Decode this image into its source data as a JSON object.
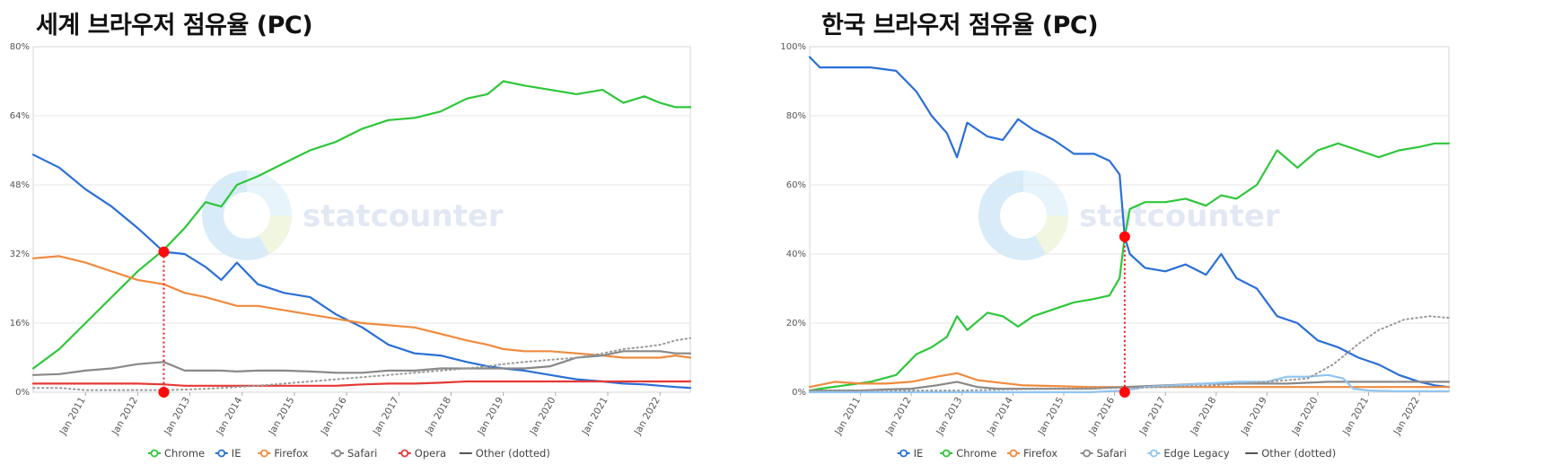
{
  "chart_data": [
    {
      "type": "line",
      "title": "세계 브라우저 점유율 (PC)",
      "watermark": "statcounter",
      "ylim": [
        0,
        80
      ],
      "yticks": [
        "0%",
        "16%",
        "32%",
        "48%",
        "64%",
        "80%"
      ],
      "xlim": [
        2010.0,
        2022.58
      ],
      "xticks": [
        "Jan 2011",
        "Jan 2012",
        "Jan 2013",
        "Jan 2014",
        "Jan 2015",
        "Jan 2016",
        "Jan 2017",
        "Jan 2018",
        "Jan 2019",
        "Jan 2020",
        "Jan 2021",
        "Jan 2022"
      ],
      "legend_position": "bottom",
      "crossover": {
        "x": 2012.5,
        "y": 32.5
      },
      "series": [
        {
          "name": "Chrome",
          "color": "#2ec63a",
          "x": [
            2010.0,
            2010.5,
            2011.0,
            2011.5,
            2012.0,
            2012.5,
            2012.9,
            2013.3,
            2013.6,
            2013.9,
            2014.3,
            2014.8,
            2015.3,
            2015.8,
            2016.3,
            2016.8,
            2017.3,
            2017.8,
            2018.3,
            2018.7,
            2019.0,
            2019.4,
            2019.9,
            2020.4,
            2020.9,
            2021.3,
            2021.7,
            2022.0,
            2022.3,
            2022.58
          ],
          "values": [
            5.5,
            10,
            16,
            22,
            28,
            33,
            38,
            44,
            43,
            48,
            50,
            53,
            56,
            58,
            61,
            63,
            63.5,
            65,
            68,
            69,
            72,
            71,
            70,
            69,
            70,
            67,
            68.5,
            67,
            66,
            66
          ]
        },
        {
          "name": "IE",
          "color": "#2a6fd6",
          "x": [
            2010.0,
            2010.5,
            2011.0,
            2011.5,
            2012.0,
            2012.5,
            2012.9,
            2013.3,
            2013.6,
            2013.9,
            2014.3,
            2014.8,
            2015.3,
            2015.8,
            2016.3,
            2016.8,
            2017.3,
            2017.8,
            2018.3,
            2018.7,
            2019.0,
            2019.4,
            2019.9,
            2020.4,
            2020.9,
            2021.3,
            2021.7,
            2022.0,
            2022.3,
            2022.58
          ],
          "values": [
            55,
            52,
            47,
            43,
            38,
            32.5,
            32,
            29,
            26,
            30,
            25,
            23,
            22,
            18,
            15,
            11,
            9,
            8.5,
            7,
            6,
            5.5,
            5,
            4,
            3,
            2.5,
            2,
            1.8,
            1.5,
            1.2,
            1.0
          ]
        },
        {
          "name": "Firefox",
          "color": "#f08a3e",
          "x": [
            2010.0,
            2010.5,
            2011.0,
            2011.5,
            2012.0,
            2012.5,
            2012.9,
            2013.3,
            2013.6,
            2013.9,
            2014.3,
            2014.8,
            2015.3,
            2015.8,
            2016.3,
            2016.8,
            2017.3,
            2017.8,
            2018.3,
            2018.7,
            2019.0,
            2019.4,
            2019.9,
            2020.4,
            2020.9,
            2021.3,
            2021.7,
            2022.0,
            2022.3,
            2022.58
          ],
          "values": [
            31,
            31.5,
            30,
            28,
            26,
            25,
            23,
            22,
            21,
            20,
            20,
            19,
            18,
            17,
            16,
            15.5,
            15,
            13.5,
            12,
            11,
            10,
            9.5,
            9.5,
            9,
            8.5,
            8,
            8,
            8,
            8.5,
            8
          ]
        },
        {
          "name": "Safari",
          "color": "#888888",
          "x": [
            2010.0,
            2010.5,
            2011.0,
            2011.5,
            2012.0,
            2012.5,
            2012.9,
            2013.3,
            2013.6,
            2013.9,
            2014.3,
            2014.8,
            2015.3,
            2015.8,
            2016.3,
            2016.8,
            2017.3,
            2017.8,
            2018.3,
            2018.7,
            2019.0,
            2019.4,
            2019.9,
            2020.4,
            2020.9,
            2021.3,
            2021.7,
            2022.0,
            2022.3,
            2022.58
          ],
          "values": [
            4,
            4.2,
            5,
            5.5,
            6.5,
            7,
            5,
            5,
            5,
            4.8,
            5,
            5,
            4.8,
            4.5,
            4.5,
            5,
            5,
            5.5,
            5.5,
            5.5,
            5.5,
            5.5,
            6,
            8,
            8.5,
            9.5,
            9.5,
            9.5,
            9,
            9
          ]
        },
        {
          "name": "Opera",
          "color": "#e53935",
          "x": [
            2010.0,
            2010.5,
            2011.0,
            2011.5,
            2012.0,
            2012.5,
            2012.9,
            2013.3,
            2013.6,
            2013.9,
            2014.3,
            2014.8,
            2015.3,
            2015.8,
            2016.3,
            2016.8,
            2017.3,
            2017.8,
            2018.3,
            2018.7,
            2019.0,
            2019.4,
            2019.9,
            2020.4,
            2020.9,
            2021.3,
            2021.7,
            2022.0,
            2022.3,
            2022.58
          ],
          "values": [
            2,
            2,
            2,
            2,
            2,
            1.8,
            1.5,
            1.5,
            1.5,
            1.5,
            1.5,
            1.5,
            1.5,
            1.5,
            1.8,
            2,
            2,
            2.2,
            2.5,
            2.5,
            2.5,
            2.5,
            2.5,
            2.5,
            2.5,
            2.5,
            2.5,
            2.5,
            2.5,
            2.5
          ]
        },
        {
          "name": "Other (dotted)",
          "color": "#9a9a9a",
          "dotted": true,
          "x": [
            2010.0,
            2010.5,
            2011.0,
            2011.5,
            2012.0,
            2012.5,
            2012.9,
            2013.3,
            2013.6,
            2013.9,
            2014.3,
            2014.8,
            2015.3,
            2015.8,
            2016.3,
            2016.8,
            2017.3,
            2017.8,
            2018.3,
            2018.7,
            2019.0,
            2019.4,
            2019.9,
            2020.4,
            2020.9,
            2021.3,
            2021.7,
            2022.0,
            2022.3,
            2022.58
          ],
          "values": [
            1,
            1,
            0.5,
            0.5,
            0.5,
            0.5,
            0.6,
            0.8,
            1,
            1.2,
            1.5,
            2,
            2.5,
            3,
            3.5,
            4,
            4.5,
            5,
            5.5,
            6,
            6.5,
            7,
            7.5,
            8,
            9,
            10,
            10.5,
            11,
            12,
            12.5
          ]
        }
      ]
    },
    {
      "type": "line",
      "title": "한국 브라우저 점유율 (PC)",
      "watermark": "statcounter",
      "ylim": [
        0,
        100
      ],
      "yticks": [
        "0%",
        "20%",
        "40%",
        "60%",
        "80%",
        "100%"
      ],
      "xlim": [
        2010.0,
        2022.58
      ],
      "xticks": [
        "Jan 2011",
        "Jan 2012",
        "Jan 2013",
        "Jan 2014",
        "Jan 2015",
        "Jan 2016",
        "Jan 2017",
        "Jan 2018",
        "Jan 2019",
        "Jan 2020",
        "Jan 2021",
        "Jan 2022"
      ],
      "legend_position": "bottom",
      "crossover": {
        "x": 2016.2,
        "y": 45
      },
      "series": [
        {
          "name": "IE",
          "color": "#2a6fd6",
          "x": [
            2010.0,
            2010.2,
            2010.7,
            2011.2,
            2011.7,
            2012.1,
            2012.4,
            2012.7,
            2012.9,
            2013.1,
            2013.5,
            2013.8,
            2014.1,
            2014.4,
            2014.8,
            2015.2,
            2015.6,
            2015.9,
            2016.1,
            2016.2,
            2016.3,
            2016.6,
            2017.0,
            2017.4,
            2017.8,
            2018.1,
            2018.4,
            2018.8,
            2019.2,
            2019.6,
            2020.0,
            2020.4,
            2020.8,
            2021.2,
            2021.6,
            2022.0,
            2022.3,
            2022.58
          ],
          "values": [
            97,
            94,
            94,
            94,
            93,
            87,
            80,
            75,
            68,
            78,
            74,
            73,
            79,
            76,
            73,
            69,
            69,
            67,
            63,
            45,
            40,
            36,
            35,
            37,
            34,
            40,
            33,
            30,
            22,
            20,
            15,
            13,
            10,
            8,
            5,
            3,
            2,
            1.5
          ]
        },
        {
          "name": "Chrome",
          "color": "#2ec63a",
          "x": [
            2010.0,
            2010.2,
            2010.7,
            2011.2,
            2011.7,
            2012.1,
            2012.4,
            2012.7,
            2012.9,
            2013.1,
            2013.5,
            2013.8,
            2014.1,
            2014.4,
            2014.8,
            2015.2,
            2015.6,
            2015.9,
            2016.1,
            2016.2,
            2016.3,
            2016.6,
            2017.0,
            2017.4,
            2017.8,
            2018.1,
            2018.4,
            2018.8,
            2019.2,
            2019.6,
            2020.0,
            2020.4,
            2020.8,
            2021.2,
            2021.6,
            2022.0,
            2022.3,
            2022.58
          ],
          "values": [
            0.5,
            1,
            2,
            3,
            5,
            11,
            13,
            16,
            22,
            18,
            23,
            22,
            19,
            22,
            24,
            26,
            27,
            28,
            33,
            45,
            53,
            55,
            55,
            56,
            54,
            57,
            56,
            60,
            70,
            65,
            70,
            72,
            70,
            68,
            70,
            71,
            72,
            72
          ]
        },
        {
          "name": "Firefox",
          "color": "#f08a3e",
          "x": [
            2010.0,
            2010.5,
            2011.0,
            2011.5,
            2012.0,
            2012.5,
            2012.9,
            2013.3,
            2013.7,
            2014.2,
            2014.8,
            2015.5,
            2016.2,
            2017.0,
            2017.8,
            2018.6,
            2019.4,
            2020.2,
            2021.0,
            2021.8,
            2022.58
          ],
          "values": [
            1.5,
            3,
            2.5,
            2.5,
            3,
            4.5,
            5.5,
            3.5,
            2.8,
            2,
            1.8,
            1.5,
            1.5,
            1.5,
            1.5,
            1.5,
            1.5,
            1.5,
            1.5,
            1.5,
            1.5
          ]
        },
        {
          "name": "Safari",
          "color": "#888888",
          "x": [
            2010.0,
            2010.5,
            2011.0,
            2011.5,
            2012.0,
            2012.5,
            2012.9,
            2013.3,
            2013.7,
            2014.2,
            2014.8,
            2015.5,
            2016.2,
            2017.0,
            2017.8,
            2018.6,
            2019.4,
            2020.2,
            2021.0,
            2021.8,
            2022.58
          ],
          "values": [
            0.5,
            0.5,
            0.5,
            0.8,
            1,
            2,
            3,
            1.5,
            1,
            1,
            1,
            1,
            1.5,
            2,
            2.5,
            2.5,
            2.5,
            3,
            3,
            3,
            3
          ]
        },
        {
          "name": "Edge Legacy",
          "color": "#90c4f0",
          "x": [
            2010.0,
            2015.5,
            2016.2,
            2016.6,
            2017.2,
            2017.8,
            2018.4,
            2019.0,
            2019.4,
            2019.8,
            2020.2,
            2020.5,
            2020.7,
            2021.0,
            2021.5,
            2022.58
          ],
          "values": [
            0,
            0,
            0.5,
            1.5,
            2,
            2.5,
            3,
            3,
            4.5,
            4.5,
            5,
            4,
            1,
            0.5,
            0.3,
            0.3
          ]
        },
        {
          "name": "Other (dotted)",
          "color": "#9a9a9a",
          "dotted": true,
          "x": [
            2010.0,
            2011.0,
            2012.0,
            2013.0,
            2014.0,
            2015.0,
            2016.0,
            2017.0,
            2018.0,
            2019.0,
            2019.8,
            2020.3,
            2020.8,
            2021.2,
            2021.7,
            2022.2,
            2022.58
          ],
          "values": [
            0.5,
            0.5,
            0.5,
            0.5,
            0.8,
            1,
            1.2,
            1.5,
            2,
            3,
            4,
            8,
            14,
            18,
            21,
            22,
            21.5
          ]
        }
      ]
    }
  ]
}
